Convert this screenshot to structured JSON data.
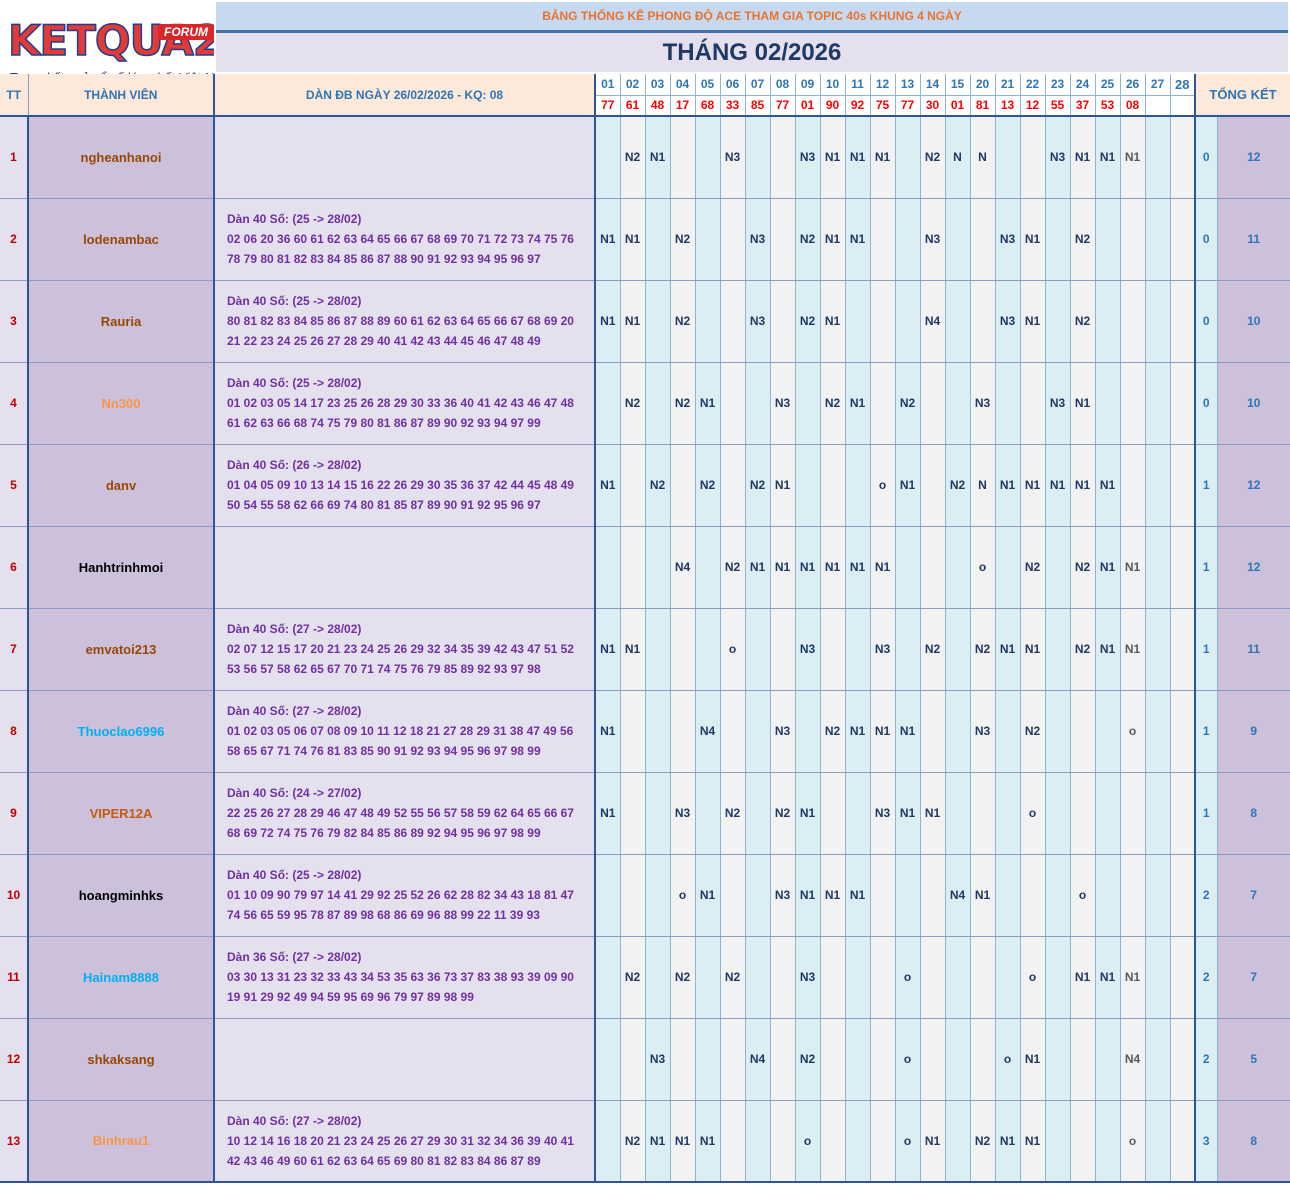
{
  "logo": {
    "brand": "KETQUA2",
    "badge": "FORUM",
    "tagline": "Trang kết quả xổ số lớn nhất Việt Nam"
  },
  "header": {
    "title": "BẢNG THỐNG KÊ PHONG ĐỘ ACE THAM GIA TOPIC 40s KHUNG 4 NGÀY",
    "month": "THÁNG 02/2026",
    "col_tt": "TT",
    "col_member": "THÀNH VIÊN",
    "col_dan": "DÀN ĐB NGÀY 26/02/2026 - KQ: 08",
    "col_summary": "TỔNG KẾT"
  },
  "days": [
    "01",
    "02",
    "03",
    "04",
    "05",
    "06",
    "07",
    "08",
    "09",
    "10",
    "11",
    "12",
    "13",
    "14",
    "15",
    "20",
    "21",
    "22",
    "23",
    "24",
    "25",
    "26",
    "27",
    "28"
  ],
  "results": [
    "77",
    "61",
    "48",
    "17",
    "68",
    "33",
    "85",
    "77",
    "01",
    "90",
    "92",
    "75",
    "77",
    "30",
    "01",
    "81",
    "13",
    "12",
    "55",
    "37",
    "53",
    "08",
    "",
    ""
  ],
  "rows": [
    {
      "tt": "1",
      "member": "ngheanhanoi",
      "color": "#974706",
      "dan": [],
      "marks": [
        "",
        "N2",
        "N1",
        "",
        "",
        "N3",
        "",
        "",
        "N3",
        "N1",
        "N1",
        "N1",
        "",
        "N2",
        "N",
        "N",
        "",
        "",
        "N3",
        "N1",
        "N1",
        "N1",
        "",
        ""
      ],
      "wins": "0",
      "total": "12"
    },
    {
      "tt": "2",
      "member": "lodenambac",
      "color": "#974706",
      "dan": [
        "Dàn 40 Số: (25 -> 28/02)",
        "02 06 20 36 60 61 62 63 64 65 66 67 68 69 70 71 72 73 74 75 76",
        "78 79 80 81 82 83 84 85 86 87 88 90 91 92 93 94 95 96 97"
      ],
      "marks": [
        "N1",
        "N1",
        "",
        "N2",
        "",
        "",
        "N3",
        "",
        "N2",
        "N1",
        "N1",
        "",
        "",
        "N3",
        "",
        "",
        "N3",
        "N1",
        "",
        "N2",
        "",
        "",
        "",
        ""
      ],
      "wins": "0",
      "total": "11"
    },
    {
      "tt": "3",
      "member": "Rauria",
      "color": "#974706",
      "dan": [
        "Dàn 40 Số: (25 -> 28/02)",
        "80 81 82 83 84 85 86 87 88 89 60 61 62 63 64 65 66 67 68 69 20",
        "21 22 23 24 25 26 27 28 29 40 41 42 43 44 45 46 47 48 49"
      ],
      "marks": [
        "N1",
        "N1",
        "",
        "N2",
        "",
        "",
        "N3",
        "",
        "N2",
        "N1",
        "",
        "",
        "",
        "N4",
        "",
        "",
        "N3",
        "N1",
        "",
        "N2",
        "",
        "",
        "",
        ""
      ],
      "wins": "0",
      "total": "10"
    },
    {
      "tt": "4",
      "member": "Nn300",
      "color": "#f79646",
      "dan": [
        "Dàn 40 Số: (25 -> 28/02)",
        "01 02 03 05 14 17 23 25 26 28 29 30 33 36 40 41 42 43 46 47 48",
        "61 62 63 66 68 74 75 79 80 81 86 87 89 90 92 93 94 97 99"
      ],
      "marks": [
        "",
        "N2",
        "",
        "N2",
        "N1",
        "",
        "",
        "N3",
        "",
        "N2",
        "N1",
        "",
        "N2",
        "",
        "",
        "N3",
        "",
        "",
        "N3",
        "N1",
        "",
        "",
        "",
        ""
      ],
      "wins": "0",
      "total": "10"
    },
    {
      "tt": "5",
      "member": "danv",
      "color": "#974706",
      "dan": [
        "Dàn 40 Số: (26 -> 28/02)",
        "01 04 05 09 10 13 14 15 16 22 26 29 30 35 36 37 42 44 45 48 49",
        "50 54 55 58 62 66 69 74 80 81 85 87 89 90 91 92 95 96 97"
      ],
      "marks": [
        "N1",
        "",
        "N2",
        "",
        "N2",
        "",
        "N2",
        "N1",
        "",
        "",
        "",
        "o",
        "N1",
        "",
        "N2",
        "N",
        "N1",
        "N1",
        "N1",
        "N1",
        "N1",
        "",
        "",
        ""
      ],
      "wins": "1",
      "total": "12"
    },
    {
      "tt": "6",
      "member": "Hanhtrinhmoi",
      "color": "#000000",
      "dan": [],
      "marks": [
        "",
        "",
        "",
        "N4",
        "",
        "N2",
        "N1",
        "N1",
        "N1",
        "N1",
        "N1",
        "N1",
        "",
        "",
        "",
        "o",
        "",
        "N2",
        "",
        "N2",
        "N1",
        "N1",
        "",
        ""
      ],
      "wins": "1",
      "total": "12"
    },
    {
      "tt": "7",
      "member": "emvatoi213",
      "color": "#974706",
      "dan": [
        "Dàn 40 Số: (27 -> 28/02)",
        "02 07 12 15 17 20 21 23 24 25 26 29 32 34 35 39 42 43 47 51 52",
        "53 56 57 58 62 65 67 70 71 74 75 76 79 85 89 92 93 97 98"
      ],
      "marks": [
        "N1",
        "N1",
        "",
        "",
        "",
        "o",
        "",
        "",
        "N3",
        "",
        "",
        "N3",
        "",
        "N2",
        "",
        "N2",
        "N1",
        "N1",
        "",
        "N2",
        "N1",
        "N1",
        "",
        ""
      ],
      "wins": "1",
      "total": "11"
    },
    {
      "tt": "8",
      "member": "Thuoclao6996",
      "color": "#00b0f0",
      "dan": [
        "Dàn 40 Số: (27 -> 28/02)",
        "01 02 03 05 06 07 08 09 10 11 12 18 21 27 28 29 31 38 47 49 56",
        "58 65 67 71 74 76 81 83 85 90 91 92 93 94 95 96 97 98 99"
      ],
      "marks": [
        "N1",
        "",
        "",
        "",
        "N4",
        "",
        "",
        "N3",
        "",
        "N2",
        "N1",
        "N1",
        "N1",
        "",
        "",
        "N3",
        "",
        "N2",
        "",
        "",
        "",
        "o",
        "",
        ""
      ],
      "wins": "1",
      "total": "9"
    },
    {
      "tt": "9",
      "member": "VIPER12A",
      "color": "#c55a11",
      "dan": [
        "Dàn 40 Số: (24 -> 27/02)",
        "22 25 26 27 28 29 46 47 48 49 52 55 56 57 58 59 62 64 65 66 67",
        "68 69 72 74 75 76 79 82 84 85 86 89 92 94 95 96 97 98 99"
      ],
      "marks": [
        "N1",
        "",
        "",
        "N3",
        "",
        "N2",
        "",
        "N2",
        "N1",
        "",
        "",
        "N3",
        "N1",
        "N1",
        "",
        "",
        "",
        "o",
        "",
        "",
        "",
        "",
        "",
        ""
      ],
      "wins": "1",
      "total": "8"
    },
    {
      "tt": "10",
      "member": "hoangminhks",
      "color": "#000000",
      "dan": [
        "Dàn 40 Số: (25 -> 28/02)",
        "01 10 09 90 79 97 14 41 29 92 25 52 26 62 28 82 34 43 18 81 47",
        "74 56 65 59 95 78 87 89 98 68 86 69 96 88 99 22 11 39 93"
      ],
      "marks": [
        "",
        "",
        "",
        "o",
        "N1",
        "",
        "",
        "N3",
        "N1",
        "N1",
        "N1",
        "",
        "",
        "",
        "N4",
        "N1",
        "",
        "",
        "",
        "o",
        "",
        "",
        "",
        ""
      ],
      "wins": "2",
      "total": "7"
    },
    {
      "tt": "11",
      "member": "Hainam8888",
      "color": "#00b0f0",
      "dan": [
        "Dàn 36 Số: (27 -> 28/02)",
        "03 30 13 31 23 32 33 43 34 53 35 63 36 73 37 83 38 93 39 09 90",
        "19 91 29 92 49 94 59 95 69 96 79 97 89 98 99"
      ],
      "marks": [
        "",
        "N2",
        "",
        "N2",
        "",
        "N2",
        "",
        "",
        "N3",
        "",
        "",
        "",
        "o",
        "",
        "",
        "",
        "",
        "o",
        "",
        "N1",
        "N1",
        "N1",
        "",
        ""
      ],
      "wins": "2",
      "total": "7"
    },
    {
      "tt": "12",
      "member": "shkaksang",
      "color": "#974706",
      "dan": [],
      "marks": [
        "",
        "",
        "N3",
        "",
        "",
        "",
        "N4",
        "",
        "N2",
        "",
        "",
        "",
        "o",
        "",
        "",
        "",
        "o",
        "N1",
        "",
        "",
        "",
        "N4",
        "",
        ""
      ],
      "wins": "2",
      "total": "5"
    },
    {
      "tt": "13",
      "member": "Binhrau1",
      "color": "#f79646",
      "dan": [
        "Dàn 40 Số: (27 -> 28/02)",
        "10 12 14 16 18 20 21 23 24 25 26 27 29 30 31 32 34 36 39 40 41",
        "42 43 46 49 60 61 62 63 64 65 69 80 81 82 83 84 86 87 89"
      ],
      "marks": [
        "",
        "N2",
        "N1",
        "N1",
        "N1",
        "",
        "",
        "",
        "o",
        "",
        "",
        "",
        "o",
        "N1",
        "",
        "N2",
        "N1",
        "N1",
        "",
        "",
        "",
        "o",
        "",
        ""
      ],
      "wins": "3",
      "total": "8"
    }
  ]
}
